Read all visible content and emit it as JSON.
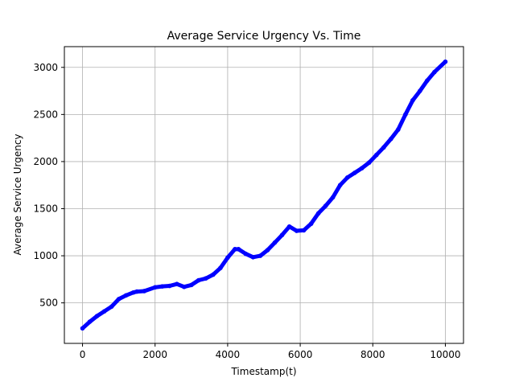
{
  "chart_data": {
    "type": "line",
    "title": "Average Service Urgency Vs. Time",
    "xlabel": "Timestamp(t)",
    "ylabel": "Average Service Urgency",
    "xlim": [
      -500,
      10500
    ],
    "ylim": [
      70,
      3220
    ],
    "xticks": [
      0,
      2000,
      4000,
      6000,
      8000,
      10000
    ],
    "yticks": [
      500,
      1000,
      1500,
      2000,
      2500,
      3000
    ],
    "grid": true,
    "colors": {
      "line": "#0000ff",
      "grid": "#b0b0b0",
      "axes": "#000000"
    },
    "series": [
      {
        "x": [
          0,
          200,
          400,
          600,
          800,
          1000,
          1200,
          1400,
          1500,
          1700,
          2000,
          2200,
          2400,
          2600,
          2800,
          3000,
          3200,
          3400,
          3600,
          3800,
          4000,
          4200,
          4300,
          4500,
          4700,
          4900,
          5100,
          5300,
          5500,
          5700,
          5900,
          6100,
          6300,
          6500,
          6700,
          6900,
          7100,
          7300,
          7500,
          7700,
          7900,
          8100,
          8300,
          8500,
          8700,
          8900,
          9100,
          9300,
          9500,
          9700,
          10000
        ],
        "y": [
          230,
          300,
          360,
          410,
          460,
          540,
          580,
          610,
          620,
          625,
          665,
          675,
          680,
          700,
          670,
          690,
          740,
          760,
          800,
          870,
          980,
          1070,
          1070,
          1020,
          985,
          1000,
          1060,
          1140,
          1220,
          1310,
          1265,
          1270,
          1340,
          1450,
          1530,
          1620,
          1750,
          1830,
          1880,
          1930,
          1990,
          2070,
          2150,
          2240,
          2340,
          2500,
          2650,
          2750,
          2860,
          2950,
          3060
        ]
      }
    ]
  }
}
